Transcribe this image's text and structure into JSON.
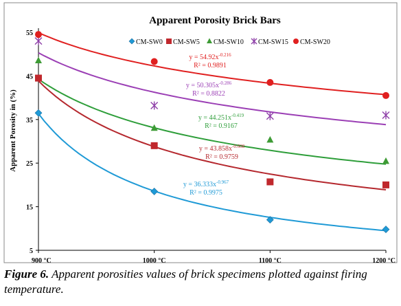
{
  "chart_data": {
    "type": "scatter",
    "title": "Apparent Porosity Brick Bars",
    "ylabel": "Apparent Porosity in (%)",
    "xlabel": "",
    "x": [
      900,
      1000,
      1100,
      1200
    ],
    "x_tick_labels": [
      "900 °C",
      "1000 °C",
      "1100 °C",
      "1200 °C"
    ],
    "xlim": [
      900,
      1200
    ],
    "ylim": [
      5,
      55
    ],
    "y_ticks": [
      5,
      15,
      25,
      35,
      45,
      55
    ],
    "grid": false,
    "legend_position": "top",
    "series": [
      {
        "name": "CM-SW0",
        "marker": "diamond",
        "color": "#1f9ad6",
        "fit_color": "#1f9ad6",
        "values": [
          36.5,
          18.5,
          12.0,
          9.8
        ],
        "fit": {
          "a": 36.333,
          "b": -0.967
        },
        "equation_base": "y = 36.333x",
        "equation_exp": "-0.967",
        "r2": "R² = 0.9975"
      },
      {
        "name": "CM-SW5",
        "marker": "square",
        "color": "#c0282d",
        "fit_color": "#b5282e",
        "values": [
          44.5,
          29.0,
          20.7,
          20.0
        ],
        "fit": {
          "a": 43.858,
          "b": -0.608
        },
        "equation_base": "y = 43.858x",
        "equation_exp": "-0.608",
        "r2": "R² = 0.9759"
      },
      {
        "name": "CM-SW10",
        "marker": "triangle",
        "color": "#3e9b35",
        "fit_color": "#2e9e3a",
        "values": [
          48.5,
          33.0,
          30.3,
          25.4
        ],
        "fit": {
          "a": 44.251,
          "b": -0.419
        },
        "equation_base": "y = 44.251x",
        "equation_exp": "-0.419",
        "r2": "R² = 0.9167"
      },
      {
        "name": "CM-SW15",
        "marker": "star",
        "color": "#8e3fa8",
        "fit_color": "#9b3fb5",
        "values": [
          53.0,
          38.2,
          35.8,
          36.0
        ],
        "fit": {
          "a": 50.305,
          "b": -0.286
        },
        "equation_base": "y = 50.305x",
        "equation_exp": "-0.286",
        "r2": "R² = 0.8822"
      },
      {
        "name": "CM-SW20",
        "marker": "circle",
        "color": "#e02020",
        "fit_color": "#e02020",
        "values": [
          54.5,
          48.3,
          43.5,
          40.5
        ],
        "fit": {
          "a": 54.92,
          "b": -0.216
        },
        "equation_base": "y = 54.92x",
        "equation_exp": "-0.216",
        "r2": "R² = 0.9891"
      }
    ]
  },
  "caption": {
    "label": "Figure 6.",
    "text": " Apparent porosities values of brick specimens plotted against firing temperature."
  }
}
